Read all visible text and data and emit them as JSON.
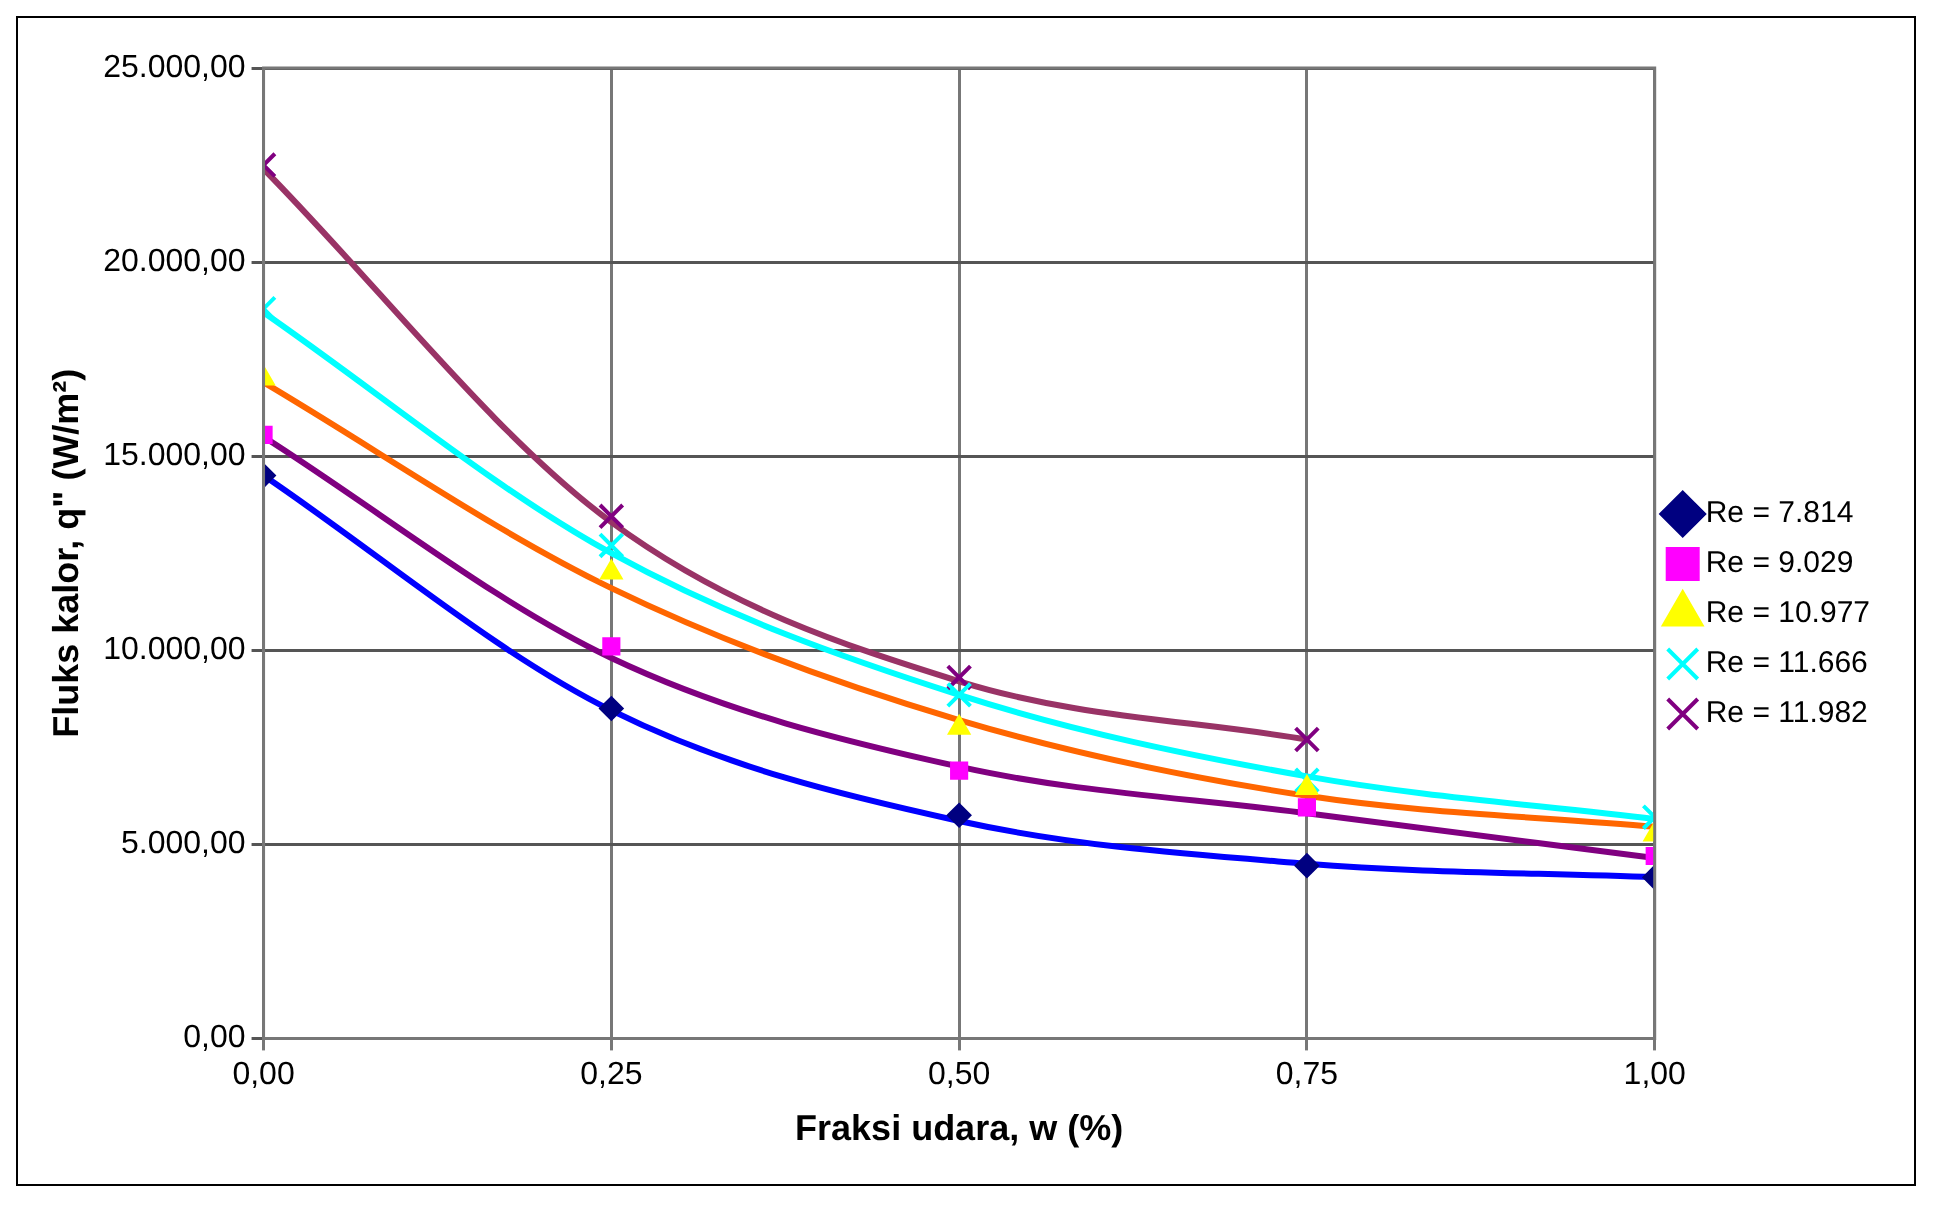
{
  "chart_data": {
    "type": "scatter",
    "xlabel": "Fraksi udara, w (%)",
    "ylabel": "Fluks kalor, q\" (W/m²)",
    "xlim": [
      0,
      1
    ],
    "xticks": [
      {
        "value": 0,
        "label": "0,00"
      },
      {
        "value": 0.25,
        "label": "0,25"
      },
      {
        "value": 0.5,
        "label": "0,50"
      },
      {
        "value": 0.75,
        "label": "0,75"
      },
      {
        "value": 1,
        "label": "1,00"
      }
    ],
    "ylim": [
      0,
      25000
    ],
    "yticks": [
      {
        "value": 0,
        "label": "0,00"
      },
      {
        "value": 5000,
        "label": "5.000,00"
      },
      {
        "value": 10000,
        "label": "10.000,00"
      },
      {
        "value": 15000,
        "label": "15.000,00"
      },
      {
        "value": 20000,
        "label": "20.000,00"
      },
      {
        "value": 25000,
        "label": "25.000,00"
      }
    ],
    "grid": true,
    "legend": "right",
    "series": [
      {
        "name": "Re = 7.814",
        "color": "#000080",
        "marker": "diamond",
        "x": [
          0,
          0.25,
          0.5,
          0.75,
          1
        ],
        "values": [
          14500,
          8500,
          5750,
          4450,
          4150
        ]
      },
      {
        "name": "Re = 9.029",
        "color": "#ff00ff",
        "marker": "square",
        "x": [
          0,
          0.25,
          0.5,
          0.75,
          1
        ],
        "values": [
          15550,
          10100,
          6900,
          5950,
          4700
        ]
      },
      {
        "name": "Re = 10.977",
        "color": "#ffff00",
        "marker": "triangle",
        "x": [
          0,
          0.25,
          0.5,
          0.75,
          1
        ],
        "values": [
          17000,
          12000,
          8000,
          6450,
          5250
        ]
      },
      {
        "name": "Re = 11.666",
        "color": "#00ffff",
        "marker": "cross",
        "x": [
          0,
          0.25,
          0.5,
          0.75,
          1
        ],
        "values": [
          18800,
          12700,
          8850,
          6650,
          5700
        ]
      },
      {
        "name": "Re = 11.982",
        "color": "#800080",
        "marker": "cross",
        "x": [
          0,
          0.25,
          0.5,
          0.75
        ],
        "values": [
          22500,
          13450,
          9300,
          7700
        ]
      },
      {
        "type": "line",
        "color": "#0000ff",
        "marker": "none",
        "x": [
          0,
          0.25,
          0.5,
          0.75,
          1
        ],
        "values": [
          14500,
          8450,
          5600,
          4500,
          4150
        ]
      },
      {
        "type": "line",
        "color": "#800080",
        "marker": "none",
        "x": [
          0,
          0.25,
          0.5,
          0.75,
          1
        ],
        "values": [
          15500,
          9800,
          7000,
          5800,
          4650
        ]
      },
      {
        "type": "line",
        "color": "#ff6600",
        "marker": "none",
        "x": [
          0,
          0.25,
          0.5,
          0.75,
          1
        ],
        "values": [
          16900,
          11600,
          8200,
          6250,
          5450
        ]
      },
      {
        "type": "line",
        "color": "#00ffff",
        "marker": "none",
        "x": [
          0,
          0.25,
          0.5,
          0.75,
          1
        ],
        "values": [
          18700,
          12500,
          8850,
          6750,
          5650
        ]
      },
      {
        "type": "line",
        "color": "#993366",
        "marker": "none",
        "x": [
          0,
          0.25,
          0.5,
          0.75
        ],
        "values": [
          22400,
          13300,
          9200,
          7700
        ]
      }
    ]
  }
}
